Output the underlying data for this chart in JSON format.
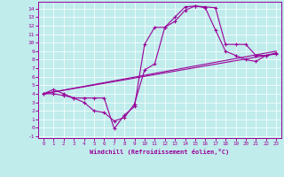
{
  "xlabel": "Windchill (Refroidissement éolien,°C)",
  "background_color": "#c0ecec",
  "line_color": "#990099",
  "xlim": [
    -0.5,
    23.5
  ],
  "ylim": [
    -1.2,
    14.8
  ],
  "xticks": [
    0,
    1,
    2,
    3,
    4,
    5,
    6,
    7,
    8,
    9,
    10,
    11,
    12,
    13,
    14,
    15,
    16,
    17,
    18,
    19,
    20,
    21,
    22,
    23
  ],
  "yticks": [
    -1,
    0,
    1,
    2,
    3,
    4,
    5,
    6,
    7,
    8,
    9,
    10,
    11,
    12,
    13,
    14
  ],
  "line1_x": [
    0,
    1,
    2,
    3,
    4,
    5,
    6,
    7,
    8,
    9,
    10,
    11,
    12,
    13,
    14,
    15,
    16,
    17,
    18,
    19,
    20,
    21,
    22,
    23
  ],
  "line1_y": [
    4.0,
    4.5,
    4.0,
    3.5,
    3.5,
    3.5,
    3.5,
    -0.1,
    1.5,
    2.5,
    9.8,
    11.8,
    11.8,
    13.0,
    14.2,
    14.3,
    14.2,
    14.1,
    9.8,
    9.8,
    9.8,
    8.5,
    8.5,
    8.7
  ],
  "line2_x": [
    0,
    1,
    2,
    3,
    4,
    5,
    6,
    7,
    8,
    9,
    10,
    11,
    12,
    13,
    14,
    15,
    16,
    17,
    18,
    19,
    20,
    21,
    22,
    23
  ],
  "line2_y": [
    4.0,
    4.0,
    3.8,
    3.5,
    3.0,
    2.0,
    1.8,
    0.8,
    1.2,
    2.8,
    6.8,
    7.5,
    11.8,
    12.5,
    13.8,
    14.3,
    14.1,
    11.5,
    9.0,
    8.5,
    8.0,
    7.8,
    8.5,
    8.8
  ],
  "line3_x": [
    0,
    23
  ],
  "line3_y": [
    4.0,
    8.7
  ],
  "line4_x": [
    0,
    23
  ],
  "line4_y": [
    4.0,
    9.0
  ]
}
